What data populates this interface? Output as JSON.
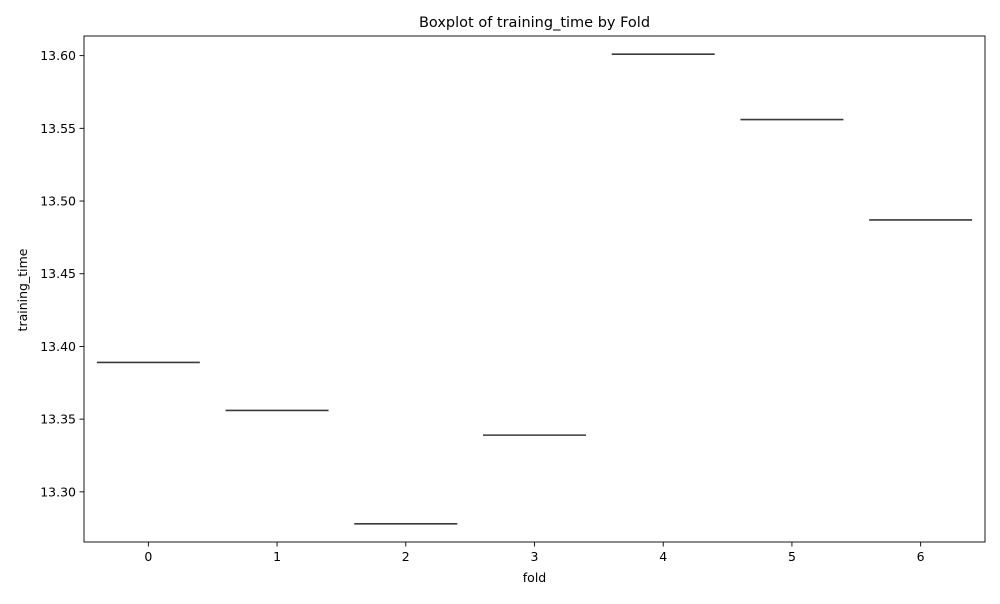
{
  "chart_data": {
    "type": "box",
    "title": "Boxplot of training_time by Fold",
    "xlabel": "fold",
    "ylabel": "training_time",
    "categories": [
      "0",
      "1",
      "2",
      "3",
      "4",
      "5",
      "6"
    ],
    "values": [
      13.389,
      13.356,
      13.278,
      13.339,
      13.601,
      13.556,
      13.487
    ],
    "ylim": [
      13.2655,
      13.6135
    ],
    "yticks": [
      13.3,
      13.35,
      13.4,
      13.45,
      13.5,
      13.55,
      13.6
    ],
    "ytick_labels": [
      "13.30",
      "13.35",
      "13.40",
      "13.45",
      "13.50",
      "13.55",
      "13.60"
    ],
    "grid": false,
    "colors": {
      "line": "#3a3a3a",
      "axis": "#000000"
    }
  }
}
